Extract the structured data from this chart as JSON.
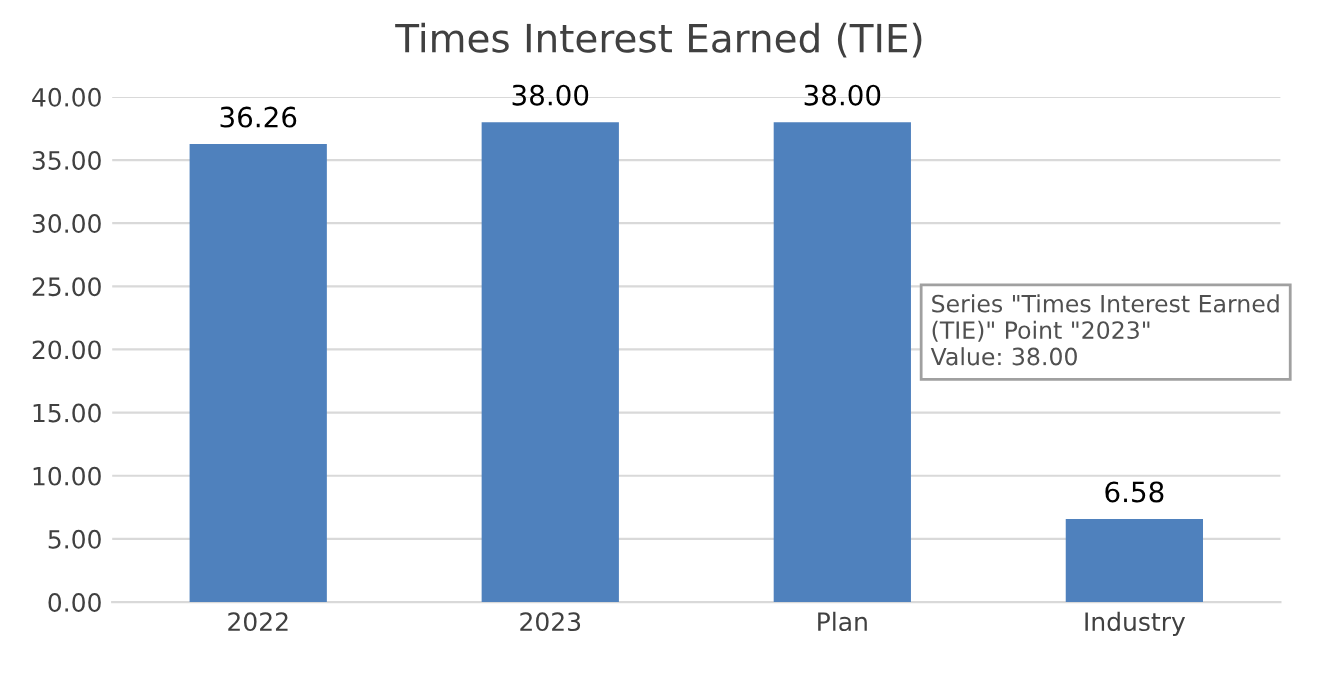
{
  "chart_data": {
    "type": "bar",
    "title": "Times Interest Earned (TIE)",
    "categories": [
      "2022",
      "2023",
      "Plan",
      "Industry"
    ],
    "values": [
      36.26,
      38.0,
      38.0,
      6.58
    ],
    "value_labels": [
      "36.26",
      "38.00",
      "38.00",
      "6.58"
    ],
    "color": "#4f81bd",
    "ylim": [
      0,
      40
    ],
    "yticks": [
      {
        "value": 0,
        "label": "0.00"
      },
      {
        "value": 5,
        "label": "5.00"
      },
      {
        "value": 10,
        "label": "10.00"
      },
      {
        "value": 15,
        "label": "15.00"
      },
      {
        "value": 20,
        "label": "20.00"
      },
      {
        "value": 25,
        "label": "25.00"
      },
      {
        "value": 30,
        "label": "30.00"
      },
      {
        "value": 35,
        "label": "35.00"
      },
      {
        "value": 40,
        "label": "40.00"
      }
    ],
    "grid": "y",
    "annotations": [
      "Series \"Times Interest Earned (TIE)\" Point \"2023\"\nValue: 38.00"
    ]
  }
}
